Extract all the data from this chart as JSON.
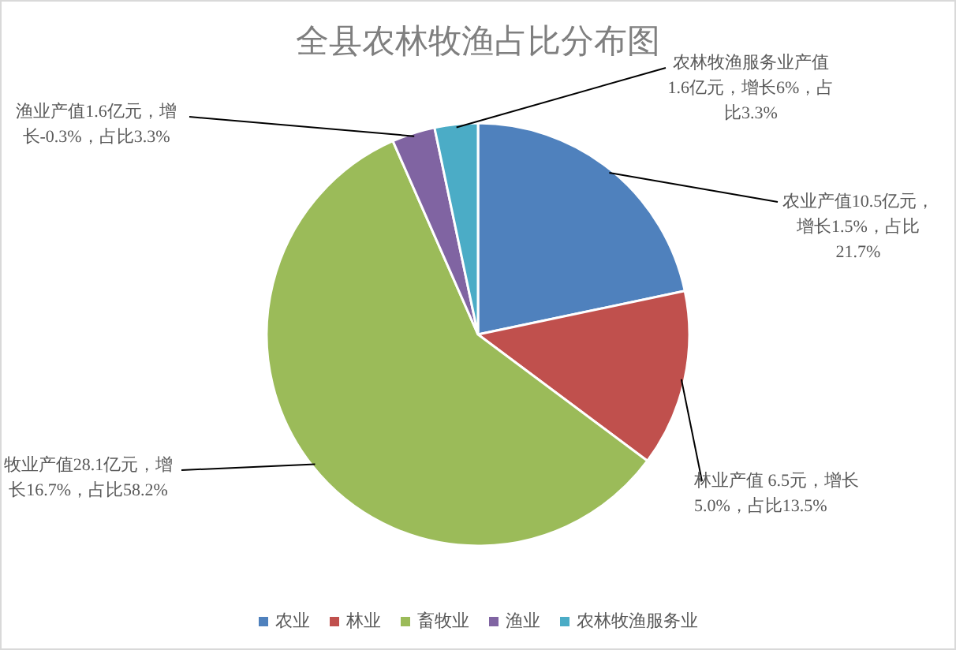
{
  "chart_data": {
    "type": "pie",
    "title": "全县农林牧渔占比分布图",
    "categories": [
      "农业",
      "林业",
      "畜牧业",
      "渔业",
      "农林牧渔服务业"
    ],
    "values": [
      21.7,
      13.5,
      58.2,
      3.3,
      3.3
    ],
    "colors": [
      "#4f81bd",
      "#c0504d",
      "#9bbb59",
      "#8064a2",
      "#4bacc6"
    ],
    "value_labels": [
      "农业产值10.5亿元，增长1.5%，占比21.7%",
      "林业产值 6.5元，增长5.0%，占比13.5%",
      "牧业产值28.1亿元，增长16.7%，占比58.2%",
      "渔业产值1.6亿元，增长-0.3%，占比3.3%",
      "农林牧渔服务业产值1.6亿元，增长6%，占比3.3%"
    ],
    "legend": "bottom"
  }
}
